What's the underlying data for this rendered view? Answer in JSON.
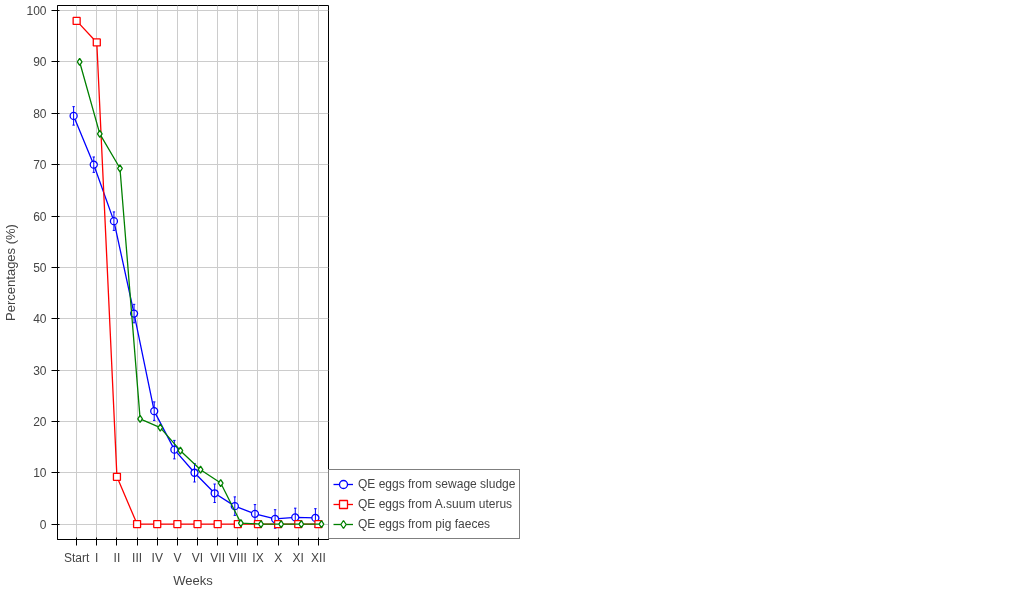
{
  "chart_data": {
    "type": "line",
    "xlabel": "Weeks",
    "ylabel": "Percentages (%)",
    "categories": [
      "Start",
      "I",
      "II",
      "III",
      "IV",
      "V",
      "VI",
      "VII",
      "VIII",
      "IX",
      "X",
      "XI",
      "XII"
    ],
    "ylim": [
      -3,
      101
    ],
    "yticks": [
      0,
      10,
      20,
      30,
      40,
      50,
      60,
      70,
      80,
      90,
      100
    ],
    "grid": true,
    "legend": "bottom right",
    "series": [
      {
        "name": "QE eggs from sewage sludge",
        "color": "#0000ff",
        "marker": "circle",
        "values": [
          79.5,
          70,
          59,
          41,
          22,
          14.5,
          10,
          6,
          3.5,
          2,
          1,
          1.3,
          1.2
        ],
        "errors": [
          1.8,
          1.5,
          1.8,
          1.8,
          1.8,
          1.8,
          1.8,
          1.8,
          1.8,
          1.8,
          1.8,
          1.8,
          1.8
        ]
      },
      {
        "name": "QE eggs from A.suum uterus",
        "color": "#ff0000",
        "marker": "square",
        "values": [
          98,
          93.8,
          9.2,
          0,
          0,
          0,
          0,
          0,
          0,
          0,
          0,
          0,
          0
        ]
      },
      {
        "name": "QE eggs from pig faeces",
        "color": "#008000",
        "marker": "diamond",
        "values": [
          90,
          76,
          69.3,
          20.5,
          18.8,
          14.3,
          10.6,
          8,
          0.2,
          0,
          0,
          0,
          0
        ]
      }
    ]
  }
}
